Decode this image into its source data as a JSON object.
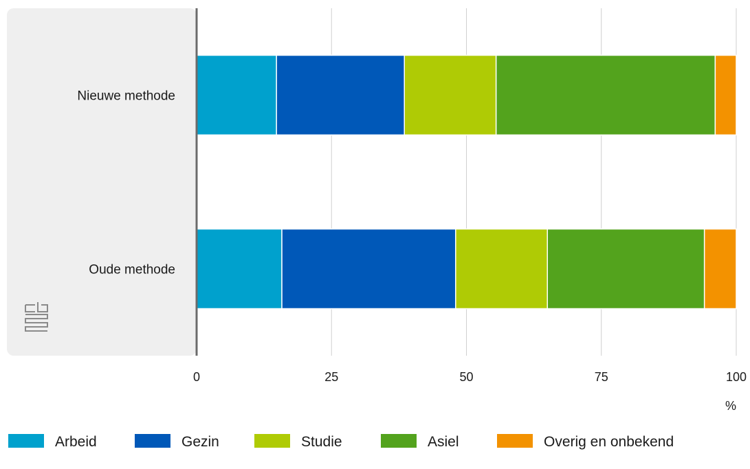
{
  "chart_data": {
    "type": "bar",
    "orientation": "horizontal",
    "stacked": true,
    "categories": [
      "Nieuwe methode",
      "Oude methode"
    ],
    "series": [
      {
        "name": "Arbeid",
        "color": "#00a1cd",
        "values": [
          14.8,
          15.8
        ]
      },
      {
        "name": "Gezin",
        "color": "#0058b8",
        "values": [
          23.7,
          32.2
        ]
      },
      {
        "name": "Studie",
        "color": "#afcb05",
        "values": [
          17.0,
          17.0
        ]
      },
      {
        "name": "Asiel",
        "color": "#53a31d",
        "values": [
          40.6,
          29.1
        ]
      },
      {
        "name": "Overig en onbekend",
        "color": "#f39200",
        "values": [
          3.9,
          5.9
        ]
      }
    ],
    "xlim": [
      0,
      100
    ],
    "xticks": [
      "0",
      "25",
      "50",
      "75",
      "100"
    ],
    "xlabel": "%",
    "grid": true,
    "legend_position": "bottom"
  },
  "logo_icon": "cbs-logo-icon"
}
